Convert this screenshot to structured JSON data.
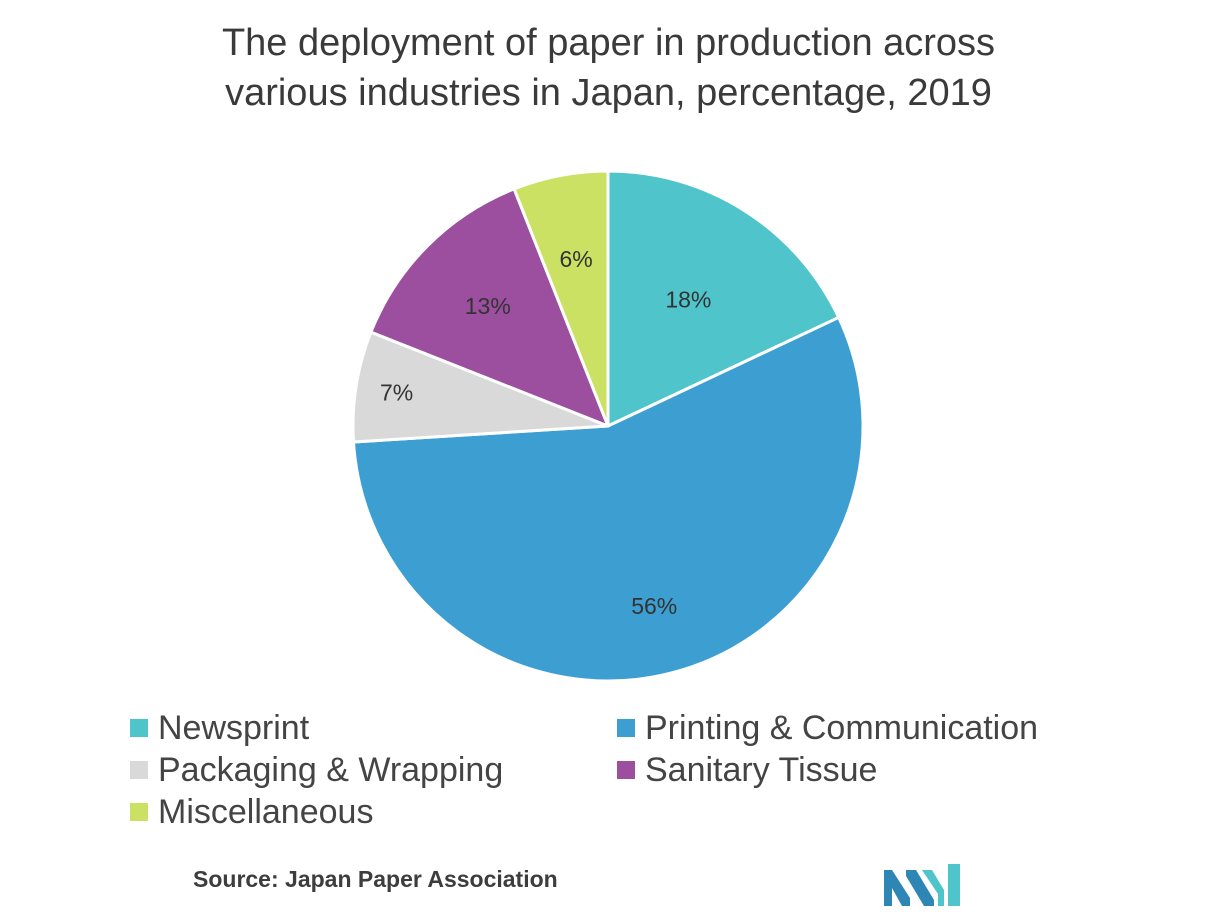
{
  "title_lines": [
    "The deployment of paper in production across",
    "various industries in Japan, percentage, 2019"
  ],
  "source": "Source: Japan Paper Association",
  "colors": {
    "newsprint": "#4fc4cb",
    "printing": "#3d9fd1",
    "packaging": "#d9d9d9",
    "sanitary": "#9b4f9e",
    "misc": "#cbe163",
    "logo_dark": "#2e86b5",
    "logo_light": "#4fc4cb"
  },
  "chart_data": {
    "type": "pie",
    "title": "The deployment of paper in production across various industries in Japan, percentage, 2019",
    "start_angle_deg": 0,
    "direction": "clockwise",
    "slices": [
      {
        "label": "Newsprint",
        "value": 18,
        "display": "18%",
        "color": "#4fc4cb"
      },
      {
        "label": "Printing & Communication",
        "value": 56,
        "display": "56%",
        "color": "#3d9fd1"
      },
      {
        "label": "Packaging & Wrapping",
        "value": 7,
        "display": "7%",
        "color": "#d9d9d9"
      },
      {
        "label": "Sanitary Tissue",
        "value": 13,
        "display": "13%",
        "color": "#9b4f9e"
      },
      {
        "label": "Miscellaneous",
        "value": 6,
        "display": "6%",
        "color": "#cbe163"
      }
    ],
    "legend_position": "bottom"
  }
}
